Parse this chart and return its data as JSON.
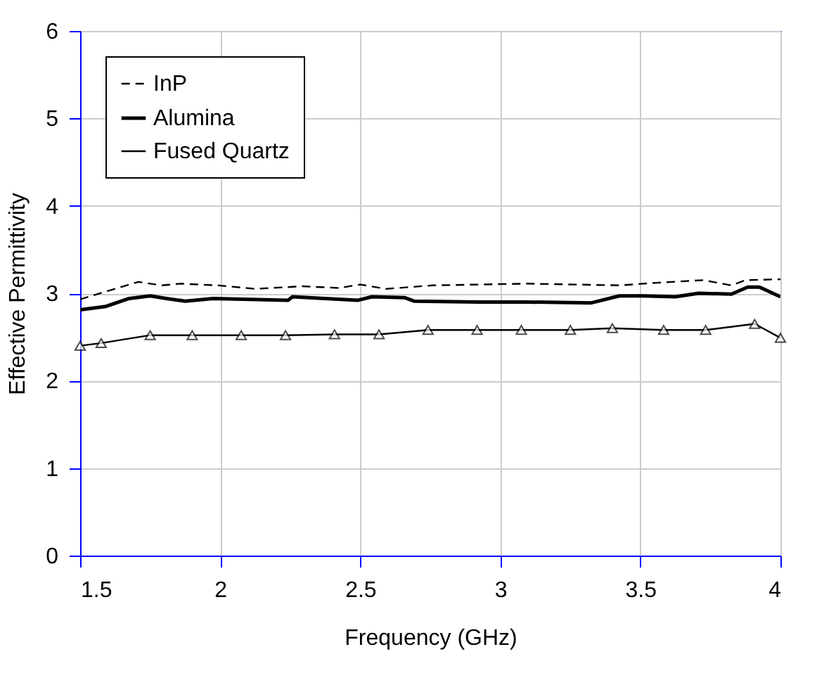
{
  "chart_data": {
    "type": "line",
    "xlabel": "Frequency (GHz)",
    "ylabel": "Effective Permittivity",
    "xlim": [
      1.5,
      4
    ],
    "xticks": [
      1.5,
      2,
      2.5,
      3,
      3.5,
      4
    ],
    "ylim": [
      0,
      6
    ],
    "yticks": [
      0,
      1,
      2,
      3,
      4,
      5,
      6
    ],
    "grid": true,
    "legend": "top left",
    "series": [
      {
        "name": "InP",
        "color": "#000000",
        "line_style": "dashed",
        "marker": "none",
        "x": [
          1.5,
          1.592,
          1.708,
          1.792,
          1.858,
          1.992,
          2.125,
          2.292,
          2.425,
          2.5,
          2.592,
          2.758,
          3.092,
          3.425,
          3.558,
          3.725,
          3.825,
          3.875,
          4.0
        ],
        "values": [
          2.93,
          3.02,
          3.13,
          3.09,
          3.11,
          3.09,
          3.05,
          3.08,
          3.06,
          3.1,
          3.05,
          3.09,
          3.11,
          3.09,
          3.12,
          3.15,
          3.09,
          3.15,
          3.16
        ]
      },
      {
        "name": "Alumina",
        "color": "#000000",
        "line_style": "solid",
        "marker": "none",
        "x": [
          1.5,
          1.592,
          1.675,
          1.75,
          1.808,
          1.875,
          1.975,
          2.242,
          2.258,
          2.492,
          2.542,
          2.658,
          2.692,
          2.925,
          3.092,
          3.325,
          3.425,
          3.508,
          3.625,
          3.708,
          3.825,
          3.883,
          3.925,
          4.0
        ],
        "values": [
          2.81,
          2.85,
          2.94,
          2.97,
          2.94,
          2.91,
          2.94,
          2.92,
          2.96,
          2.92,
          2.96,
          2.95,
          2.91,
          2.9,
          2.9,
          2.89,
          2.97,
          2.97,
          2.96,
          3.0,
          2.99,
          3.07,
          3.07,
          2.96
        ]
      },
      {
        "name": "Fused Quartz",
        "color": "#000000",
        "line_style": "solid",
        "marker": "triangle",
        "x": [
          1.5,
          1.575,
          1.75,
          1.9,
          2.075,
          2.233,
          2.408,
          2.567,
          2.742,
          2.917,
          3.075,
          3.25,
          3.4,
          3.583,
          3.733,
          3.908,
          4.0
        ],
        "values": [
          2.4,
          2.43,
          2.52,
          2.52,
          2.52,
          2.52,
          2.53,
          2.53,
          2.58,
          2.58,
          2.58,
          2.58,
          2.6,
          2.58,
          2.58,
          2.65,
          2.49
        ]
      }
    ]
  }
}
